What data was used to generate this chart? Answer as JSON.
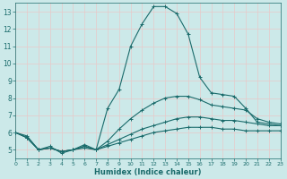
{
  "xlabel": "Humidex (Indice chaleur)",
  "bg_color": "#cce9e9",
  "grid_color": "#e8c8c8",
  "line_color": "#1a6b6b",
  "lines": [
    {
      "x": [
        0,
        1,
        2,
        3,
        4,
        5,
        6,
        7,
        8,
        9,
        10,
        11,
        12,
        13,
        14,
        15,
        16,
        17,
        18,
        19,
        20,
        21,
        22,
        23
      ],
      "y": [
        6.0,
        5.8,
        5.0,
        5.2,
        4.8,
        5.0,
        5.3,
        5.0,
        7.4,
        8.5,
        11.0,
        12.3,
        13.3,
        13.3,
        12.9,
        11.7,
        9.2,
        8.3,
        8.2,
        8.1,
        7.4,
        6.6,
        6.5,
        6.4
      ]
    },
    {
      "x": [
        0,
        1,
        2,
        3,
        4,
        5,
        6,
        7,
        8,
        9,
        10,
        11,
        12,
        13,
        14,
        15,
        16,
        17,
        18,
        19,
        20,
        21,
        22,
        23
      ],
      "y": [
        6.0,
        5.7,
        5.0,
        5.1,
        4.9,
        5.0,
        5.2,
        5.0,
        5.5,
        6.2,
        6.8,
        7.3,
        7.7,
        8.0,
        8.1,
        8.1,
        7.9,
        7.6,
        7.5,
        7.4,
        7.3,
        6.8,
        6.6,
        6.5
      ]
    },
    {
      "x": [
        0,
        1,
        2,
        3,
        4,
        5,
        6,
        7,
        8,
        9,
        10,
        11,
        12,
        13,
        14,
        15,
        16,
        17,
        18,
        19,
        20,
        21,
        22,
        23
      ],
      "y": [
        6.0,
        5.7,
        5.0,
        5.1,
        4.9,
        5.0,
        5.2,
        5.0,
        5.3,
        5.6,
        5.9,
        6.2,
        6.4,
        6.6,
        6.8,
        6.9,
        6.9,
        6.8,
        6.7,
        6.7,
        6.6,
        6.5,
        6.4,
        6.4
      ]
    },
    {
      "x": [
        0,
        1,
        2,
        3,
        4,
        5,
        6,
        7,
        8,
        9,
        10,
        11,
        12,
        13,
        14,
        15,
        16,
        17,
        18,
        19,
        20,
        21,
        22,
        23
      ],
      "y": [
        6.0,
        5.7,
        5.0,
        5.1,
        4.9,
        5.0,
        5.1,
        5.0,
        5.2,
        5.4,
        5.6,
        5.8,
        6.0,
        6.1,
        6.2,
        6.3,
        6.3,
        6.3,
        6.2,
        6.2,
        6.1,
        6.1,
        6.1,
        6.1
      ]
    }
  ],
  "xlim": [
    0,
    23
  ],
  "ylim": [
    4.5,
    13.5
  ],
  "yticks": [
    5,
    6,
    7,
    8,
    9,
    10,
    11,
    12,
    13
  ],
  "xticks": [
    0,
    1,
    2,
    3,
    4,
    5,
    6,
    7,
    8,
    9,
    10,
    11,
    12,
    13,
    14,
    15,
    16,
    17,
    18,
    19,
    20,
    21,
    22,
    23
  ],
  "marker": "+",
  "marker_size": 3,
  "linewidth": 0.8
}
